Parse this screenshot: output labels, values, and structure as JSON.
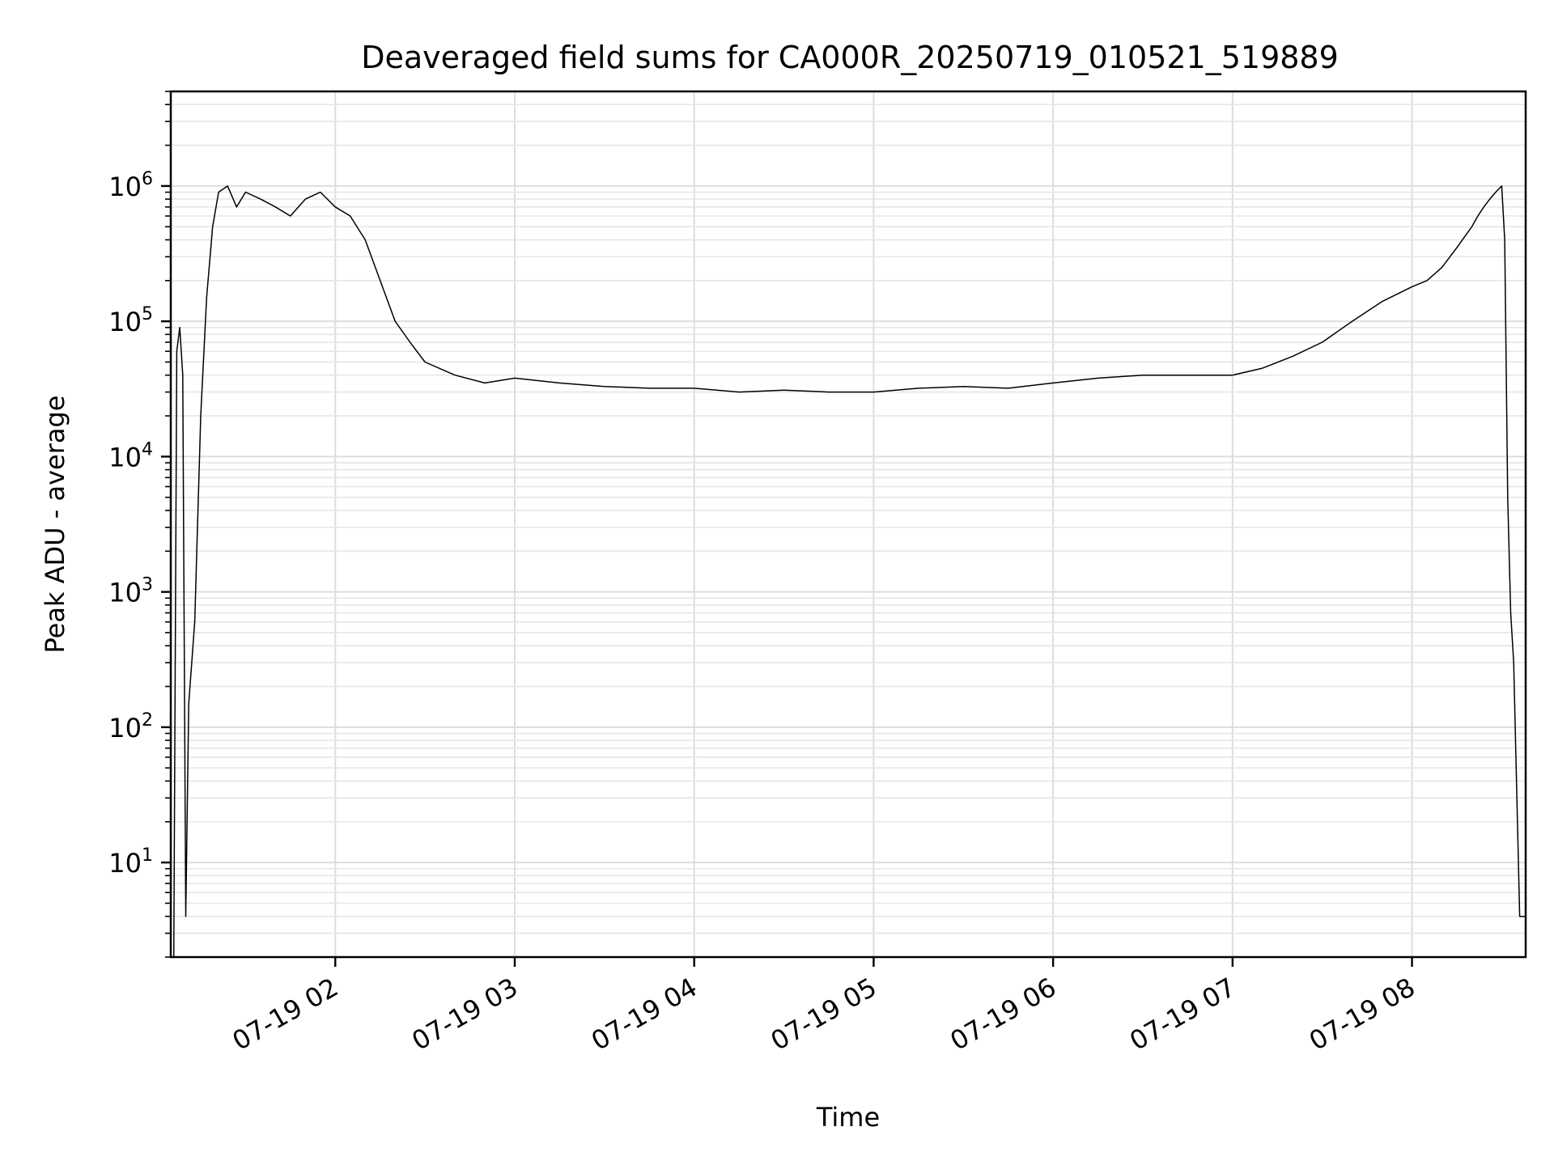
{
  "chart_data": {
    "type": "line",
    "title": "Deaveraged field sums for CA000R_20250719_010521_519889",
    "xlabel": "Time",
    "ylabel": "Peak ADU - average",
    "yscale": "log",
    "xlim": [
      "2025-07-19 01:05",
      "2025-07-19 08:38"
    ],
    "ylim": [
      2,
      5000000
    ],
    "grid": true,
    "line_color": "#000000",
    "grid_color": "#dddddd",
    "x_tick_labels": [
      "07-19 02",
      "07-19 03",
      "07-19 04",
      "07-19 05",
      "07-19 06",
      "07-19 07",
      "07-19 08"
    ],
    "x_ticks": [
      "2025-07-19 02:00",
      "2025-07-19 03:00",
      "2025-07-19 04:00",
      "2025-07-19 05:00",
      "2025-07-19 06:00",
      "2025-07-19 07:00",
      "2025-07-19 08:00"
    ],
    "y_ticks": [
      {
        "value": 10,
        "base": "10",
        "exp": "1"
      },
      {
        "value": 100,
        "base": "10",
        "exp": "2"
      },
      {
        "value": 1000,
        "base": "10",
        "exp": "3"
      },
      {
        "value": 10000,
        "base": "10",
        "exp": "4"
      },
      {
        "value": 100000,
        "base": "10",
        "exp": "5"
      },
      {
        "value": 1000000,
        "base": "10",
        "exp": "6"
      }
    ],
    "series": [
      {
        "x": [
          "2025-07-19 01:06",
          "2025-07-19 01:07",
          "2025-07-19 01:08",
          "2025-07-19 01:09",
          "2025-07-19 01:10",
          "2025-07-19 01:11",
          "2025-07-19 01:12",
          "2025-07-19 01:13",
          "2025-07-19 01:15",
          "2025-07-19 01:17",
          "2025-07-19 01:19",
          "2025-07-19 01:21",
          "2025-07-19 01:24",
          "2025-07-19 01:27",
          "2025-07-19 01:30",
          "2025-07-19 01:35",
          "2025-07-19 01:40",
          "2025-07-19 01:45",
          "2025-07-19 01:50",
          "2025-07-19 01:55",
          "2025-07-19 02:00",
          "2025-07-19 02:05",
          "2025-07-19 02:10",
          "2025-07-19 02:15",
          "2025-07-19 02:20",
          "2025-07-19 02:25",
          "2025-07-19 02:30",
          "2025-07-19 02:40",
          "2025-07-19 02:50",
          "2025-07-19 03:00",
          "2025-07-19 03:15",
          "2025-07-19 03:30",
          "2025-07-19 03:45",
          "2025-07-19 04:00",
          "2025-07-19 04:15",
          "2025-07-19 04:30",
          "2025-07-19 04:45",
          "2025-07-19 05:00",
          "2025-07-19 05:15",
          "2025-07-19 05:30",
          "2025-07-19 05:45",
          "2025-07-19 06:00",
          "2025-07-19 06:15",
          "2025-07-19 06:30",
          "2025-07-19 06:45",
          "2025-07-19 07:00",
          "2025-07-19 07:10",
          "2025-07-19 07:20",
          "2025-07-19 07:30",
          "2025-07-19 07:40",
          "2025-07-19 07:50",
          "2025-07-19 08:00",
          "2025-07-19 08:05",
          "2025-07-19 08:10",
          "2025-07-19 08:15",
          "2025-07-19 08:20",
          "2025-07-19 08:22",
          "2025-07-19 08:24",
          "2025-07-19 08:26",
          "2025-07-19 08:28",
          "2025-07-19 08:30",
          "2025-07-19 08:31",
          "2025-07-19 08:32",
          "2025-07-19 08:33",
          "2025-07-19 08:34",
          "2025-07-19 08:36",
          "2025-07-19 08:38"
        ],
        "y": [
          2,
          60000,
          90000,
          40000,
          4,
          150,
          300,
          600,
          20000,
          150000,
          500000,
          900000,
          1000000,
          700000,
          900000,
          800000,
          700000,
          600000,
          800000,
          900000,
          700000,
          600000,
          400000,
          200000,
          100000,
          70000,
          50000,
          40000,
          35000,
          38000,
          35000,
          33000,
          32000,
          32000,
          30000,
          31000,
          30000,
          30000,
          32000,
          33000,
          32000,
          35000,
          38000,
          40000,
          40000,
          40000,
          45000,
          55000,
          70000,
          100000,
          140000,
          180000,
          200000,
          250000,
          350000,
          500000,
          600000,
          700000,
          800000,
          900000,
          1000000,
          400000,
          5000,
          700,
          300,
          4,
          4
        ]
      }
    ]
  }
}
